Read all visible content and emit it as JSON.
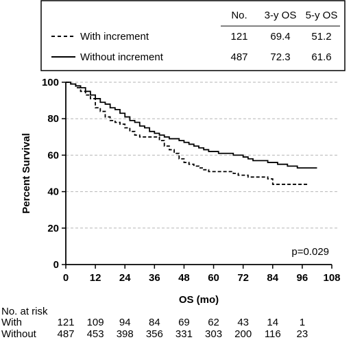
{
  "chart_data": {
    "type": "line",
    "title": "",
    "xlabel": "OS (mo)",
    "ylabel": "Percent Survival",
    "xlim": [
      0,
      108
    ],
    "ylim": [
      0,
      100
    ],
    "x_ticks": [
      0,
      12,
      24,
      36,
      48,
      60,
      72,
      84,
      96,
      108
    ],
    "y_ticks": [
      0,
      20,
      40,
      60,
      80,
      100
    ],
    "grid": "horizontal dashed",
    "annotation": "p=0.029",
    "legend": {
      "position": "top",
      "headers": [
        "",
        "No.",
        "3-y OS",
        "5-y OS"
      ],
      "rows": [
        {
          "label": "With increment",
          "style": "dashed",
          "no": "121",
          "os3": "69.4",
          "os5": "51.2"
        },
        {
          "label": "Without increment",
          "style": "solid",
          "no": "487",
          "os3": "72.3",
          "os5": "61.6"
        }
      ]
    },
    "series": [
      {
        "name": "With increment",
        "style": "dashed",
        "color": "#000000",
        "points": [
          [
            0,
            100
          ],
          [
            2,
            99
          ],
          [
            4,
            97
          ],
          [
            6,
            95
          ],
          [
            8,
            93
          ],
          [
            10,
            91
          ],
          [
            12,
            86
          ],
          [
            14,
            84
          ],
          [
            16,
            81
          ],
          [
            18,
            79
          ],
          [
            20,
            78
          ],
          [
            22,
            77
          ],
          [
            24,
            75
          ],
          [
            26,
            73
          ],
          [
            28,
            71
          ],
          [
            30,
            70
          ],
          [
            34,
            70
          ],
          [
            36,
            70
          ],
          [
            38,
            68
          ],
          [
            40,
            65
          ],
          [
            42,
            63
          ],
          [
            44,
            61
          ],
          [
            46,
            58
          ],
          [
            48,
            56
          ],
          [
            50,
            55
          ],
          [
            52,
            54
          ],
          [
            54,
            53
          ],
          [
            56,
            52
          ],
          [
            58,
            51
          ],
          [
            60,
            51
          ],
          [
            64,
            51
          ],
          [
            68,
            50
          ],
          [
            70,
            49
          ],
          [
            74,
            48
          ],
          [
            78,
            48
          ],
          [
            80,
            48
          ],
          [
            82,
            47
          ],
          [
            84,
            44
          ],
          [
            88,
            44
          ],
          [
            92,
            44
          ],
          [
            94,
            44
          ],
          [
            98,
            44
          ]
        ]
      },
      {
        "name": "Without increment",
        "style": "solid",
        "color": "#000000",
        "points": [
          [
            0,
            100
          ],
          [
            2,
            99
          ],
          [
            4,
            98
          ],
          [
            6,
            97
          ],
          [
            8,
            95
          ],
          [
            10,
            93
          ],
          [
            12,
            91
          ],
          [
            14,
            89
          ],
          [
            16,
            88
          ],
          [
            18,
            86
          ],
          [
            20,
            85
          ],
          [
            22,
            83
          ],
          [
            24,
            81
          ],
          [
            26,
            79
          ],
          [
            28,
            78
          ],
          [
            30,
            76
          ],
          [
            32,
            75
          ],
          [
            34,
            73
          ],
          [
            36,
            72
          ],
          [
            38,
            71
          ],
          [
            40,
            70
          ],
          [
            42,
            69
          ],
          [
            44,
            69
          ],
          [
            46,
            68
          ],
          [
            48,
            67
          ],
          [
            50,
            66
          ],
          [
            52,
            65
          ],
          [
            54,
            64
          ],
          [
            56,
            63
          ],
          [
            58,
            62
          ],
          [
            60,
            62
          ],
          [
            62,
            61
          ],
          [
            64,
            61
          ],
          [
            66,
            61
          ],
          [
            68,
            60
          ],
          [
            70,
            60
          ],
          [
            72,
            59
          ],
          [
            74,
            58
          ],
          [
            76,
            57
          ],
          [
            78,
            57
          ],
          [
            80,
            57
          ],
          [
            82,
            56
          ],
          [
            84,
            56
          ],
          [
            86,
            55
          ],
          [
            88,
            55
          ],
          [
            90,
            54
          ],
          [
            92,
            54
          ],
          [
            94,
            53
          ],
          [
            96,
            53
          ],
          [
            98,
            53
          ],
          [
            102,
            53
          ]
        ]
      }
    ],
    "risk_table": {
      "title": "No. at risk",
      "rows": [
        {
          "label": "With",
          "values": [
            "121",
            "109",
            "94",
            "84",
            "69",
            "62",
            "43",
            "14",
            "1"
          ]
        },
        {
          "label": "Without",
          "values": [
            "487",
            "453",
            "398",
            "356",
            "331",
            "303",
            "200",
            "116",
            "23"
          ]
        }
      ]
    }
  }
}
